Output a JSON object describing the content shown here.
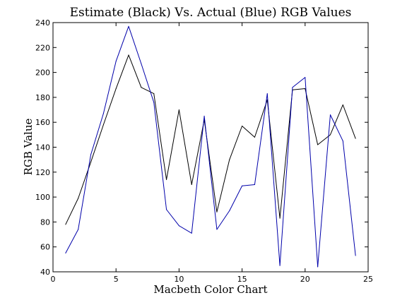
{
  "chart_data": {
    "type": "line",
    "title": "Estimate (Black) Vs. Actual (Blue) RGB Values",
    "xlabel": "Macbeth Color Chart",
    "ylabel": "RGB Value",
    "xlim": [
      0,
      25
    ],
    "ylim": [
      40,
      240
    ],
    "xticks": [
      0,
      5,
      10,
      15,
      20,
      25
    ],
    "yticks": [
      40,
      60,
      80,
      100,
      120,
      140,
      160,
      180,
      200,
      220,
      240
    ],
    "grid": false,
    "x": [
      1,
      2,
      3,
      4,
      5,
      6,
      7,
      8,
      9,
      10,
      11,
      12,
      13,
      14,
      15,
      16,
      17,
      18,
      19,
      20,
      21,
      22,
      23,
      24
    ],
    "series": [
      {
        "color": "#000000",
        "values": [
          78,
          99,
          128,
          158,
          187,
          214,
          188,
          183,
          114,
          170,
          110,
          162,
          88,
          130,
          157,
          148,
          178,
          83,
          186,
          187,
          142,
          150,
          174,
          147
        ]
      },
      {
        "color": "#0000aa",
        "values": [
          55,
          74,
          134,
          167,
          209,
          237,
          207,
          176,
          90,
          77,
          71,
          165,
          74,
          89,
          109,
          110,
          183,
          45,
          188,
          196,
          44,
          166,
          145,
          53
        ]
      }
    ]
  }
}
